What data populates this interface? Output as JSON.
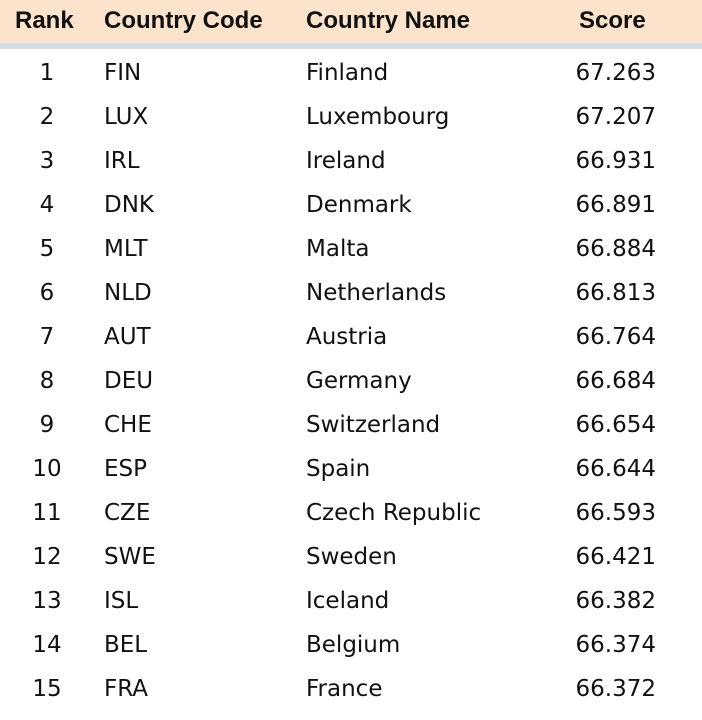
{
  "headers": {
    "rank": "Rank",
    "code": "Country Code",
    "name": "Country Name",
    "score": "Score"
  },
  "colors": {
    "header_bg": "#fbe3cc",
    "header_rule": "#d5dbe6"
  },
  "rows": [
    {
      "rank": "1",
      "code": "FIN",
      "name": "Finland",
      "score": "67.263"
    },
    {
      "rank": "2",
      "code": "LUX",
      "name": "Luxembourg",
      "score": "67.207"
    },
    {
      "rank": "3",
      "code": "IRL",
      "name": "Ireland",
      "score": "66.931"
    },
    {
      "rank": "4",
      "code": "DNK",
      "name": "Denmark",
      "score": "66.891"
    },
    {
      "rank": "5",
      "code": "MLT",
      "name": "Malta",
      "score": "66.884"
    },
    {
      "rank": "6",
      "code": "NLD",
      "name": "Netherlands",
      "score": "66.813"
    },
    {
      "rank": "7",
      "code": "AUT",
      "name": "Austria",
      "score": "66.764"
    },
    {
      "rank": "8",
      "code": "DEU",
      "name": "Germany",
      "score": "66.684"
    },
    {
      "rank": "9",
      "code": "CHE",
      "name": "Switzerland",
      "score": "66.654"
    },
    {
      "rank": "10",
      "code": "ESP",
      "name": "Spain",
      "score": "66.644"
    },
    {
      "rank": "11",
      "code": "CZE",
      "name": "Czech Republic",
      "score": "66.593"
    },
    {
      "rank": "12",
      "code": "SWE",
      "name": "Sweden",
      "score": "66.421"
    },
    {
      "rank": "13",
      "code": "ISL",
      "name": "Iceland",
      "score": "66.382"
    },
    {
      "rank": "14",
      "code": "BEL",
      "name": "Belgium",
      "score": "66.374"
    },
    {
      "rank": "15",
      "code": "FRA",
      "name": "France",
      "score": "66.372"
    }
  ]
}
